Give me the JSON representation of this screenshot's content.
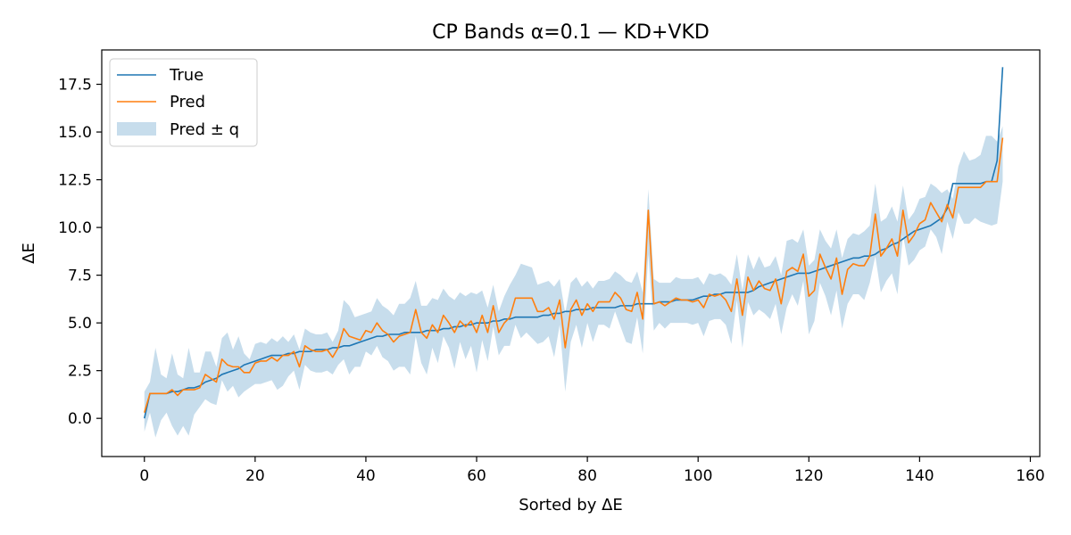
{
  "chart_data": {
    "type": "line",
    "title": "CP Bands α=0.1 — KD+VKD",
    "xlabel": "Sorted by ΔE",
    "ylabel": "ΔE",
    "xlim": [
      -7.7,
      161.7
    ],
    "ylim": [
      -2.0,
      19.3
    ],
    "x_ticks": [
      0,
      20,
      40,
      60,
      80,
      100,
      120,
      140,
      160
    ],
    "y_ticks": [
      0.0,
      2.5,
      5.0,
      7.5,
      10.0,
      12.5,
      15.0,
      17.5
    ],
    "x_tick_labels": [
      "0",
      "20",
      "40",
      "60",
      "80",
      "100",
      "120",
      "140",
      "160"
    ],
    "y_tick_labels": [
      "0.0",
      "2.5",
      "5.0",
      "7.5",
      "10.0",
      "12.5",
      "15.0",
      "17.5"
    ],
    "legend_position": "upper-left",
    "legend": [
      "True",
      "Pred",
      "Pred ± q"
    ],
    "x_start": 0,
    "x_step": 1,
    "series": [
      {
        "name": "True",
        "color": "#1f77b4",
        "values": [
          0.0,
          1.3,
          1.3,
          1.3,
          1.3,
          1.4,
          1.4,
          1.5,
          1.6,
          1.6,
          1.7,
          1.9,
          2.0,
          2.1,
          2.3,
          2.4,
          2.5,
          2.6,
          2.8,
          2.9,
          3.0,
          3.1,
          3.2,
          3.3,
          3.3,
          3.3,
          3.4,
          3.4,
          3.5,
          3.5,
          3.5,
          3.6,
          3.6,
          3.6,
          3.7,
          3.7,
          3.8,
          3.8,
          3.9,
          4.0,
          4.1,
          4.2,
          4.3,
          4.3,
          4.4,
          4.4,
          4.4,
          4.5,
          4.5,
          4.5,
          4.5,
          4.6,
          4.6,
          4.6,
          4.7,
          4.7,
          4.8,
          4.8,
          4.9,
          4.9,
          5.0,
          5.0,
          5.0,
          5.1,
          5.1,
          5.2,
          5.2,
          5.3,
          5.3,
          5.3,
          5.3,
          5.3,
          5.4,
          5.4,
          5.5,
          5.5,
          5.6,
          5.6,
          5.7,
          5.7,
          5.7,
          5.8,
          5.8,
          5.8,
          5.8,
          5.8,
          5.9,
          5.9,
          5.9,
          6.0,
          6.0,
          6.0,
          6.0,
          6.1,
          6.1,
          6.1,
          6.2,
          6.2,
          6.2,
          6.2,
          6.3,
          6.4,
          6.4,
          6.5,
          6.5,
          6.6,
          6.6,
          6.6,
          6.6,
          6.6,
          6.7,
          6.9,
          7.0,
          7.1,
          7.2,
          7.3,
          7.4,
          7.5,
          7.6,
          7.6,
          7.6,
          7.7,
          7.8,
          7.9,
          8.0,
          8.1,
          8.2,
          8.3,
          8.4,
          8.4,
          8.5,
          8.5,
          8.6,
          8.8,
          8.9,
          9.1,
          9.2,
          9.4,
          9.6,
          9.8,
          9.9,
          10.0,
          10.1,
          10.3,
          10.5,
          11.0,
          12.3,
          12.3,
          12.3,
          12.3,
          12.3,
          12.3,
          12.4,
          12.4,
          13.5,
          18.4
        ]
      },
      {
        "name": "Pred",
        "color": "#ff7f0e",
        "values": [
          0.3,
          1.3,
          1.3,
          1.3,
          1.3,
          1.5,
          1.2,
          1.5,
          1.5,
          1.5,
          1.6,
          2.3,
          2.1,
          1.9,
          3.1,
          2.8,
          2.7,
          2.7,
          2.4,
          2.4,
          2.9,
          3.0,
          3.0,
          3.2,
          3.0,
          3.3,
          3.3,
          3.5,
          2.7,
          3.8,
          3.6,
          3.5,
          3.5,
          3.6,
          3.2,
          3.7,
          4.7,
          4.3,
          4.2,
          4.1,
          4.6,
          4.5,
          5.0,
          4.6,
          4.4,
          4.0,
          4.3,
          4.4,
          4.5,
          5.7,
          4.5,
          4.2,
          4.9,
          4.5,
          5.4,
          5.0,
          4.5,
          5.1,
          4.8,
          5.1,
          4.5,
          5.4,
          4.5,
          5.9,
          4.5,
          5.0,
          5.3,
          6.3,
          6.3,
          6.3,
          6.3,
          5.6,
          5.6,
          5.8,
          5.2,
          6.2,
          3.7,
          5.7,
          6.2,
          5.4,
          6.0,
          5.6,
          6.1,
          6.1,
          6.1,
          6.6,
          6.3,
          5.7,
          5.6,
          6.6,
          5.2,
          10.9,
          6.0,
          6.1,
          5.9,
          6.1,
          6.3,
          6.2,
          6.2,
          6.1,
          6.2,
          5.8,
          6.5,
          6.4,
          6.5,
          6.2,
          5.6,
          7.3,
          5.4,
          7.4,
          6.7,
          7.2,
          6.8,
          6.7,
          7.3,
          6.0,
          7.7,
          7.9,
          7.7,
          8.6,
          6.4,
          6.7,
          8.6,
          7.9,
          7.3,
          8.4,
          6.5,
          7.8,
          8.1,
          8.0,
          8.0,
          8.5,
          10.7,
          8.5,
          8.9,
          9.4,
          8.5,
          10.9,
          9.2,
          9.6,
          10.2,
          10.4,
          11.3,
          10.8,
          10.3,
          11.2,
          10.5,
          12.1,
          12.1,
          12.1,
          12.1,
          12.1,
          12.4,
          12.4,
          12.4,
          14.7
        ]
      }
    ],
    "band": {
      "name": "Pred ± q",
      "color": "#1f77b4",
      "opacity": 0.25,
      "lower": [
        -0.7,
        0.3,
        -1.0,
        -0.1,
        0.3,
        -0.4,
        -0.9,
        -0.4,
        -0.9,
        0.2,
        0.6,
        1.0,
        0.8,
        0.7,
        2.0,
        1.4,
        1.7,
        1.1,
        1.4,
        1.6,
        1.8,
        1.8,
        1.9,
        2.0,
        1.5,
        1.7,
        2.2,
        2.5,
        1.5,
        2.8,
        2.5,
        2.4,
        2.4,
        2.5,
        2.3,
        2.8,
        3.1,
        2.3,
        2.7,
        2.7,
        3.5,
        3.3,
        3.8,
        3.2,
        3.0,
        2.5,
        2.7,
        2.7,
        2.3,
        4.3,
        2.9,
        2.3,
        3.7,
        2.9,
        4.3,
        3.7,
        2.6,
        4.0,
        3.1,
        3.8,
        2.4,
        4.1,
        3.0,
        4.8,
        3.3,
        3.8,
        3.8,
        4.9,
        4.2,
        4.5,
        4.2,
        3.9,
        4.0,
        4.3,
        3.2,
        4.9,
        1.4,
        4.0,
        4.9,
        3.7,
        5.0,
        4.0,
        4.9,
        4.9,
        4.7,
        5.6,
        4.8,
        4.0,
        3.9,
        5.3,
        3.4,
        8.6,
        4.6,
        5.0,
        4.7,
        5.0,
        5.0,
        5.0,
        5.0,
        4.9,
        5.0,
        4.3,
        5.1,
        5.2,
        5.2,
        4.9,
        3.9,
        6.2,
        3.7,
        6.1,
        5.4,
        5.7,
        5.5,
        5.2,
        6.0,
        4.4,
        5.8,
        6.5,
        5.9,
        7.2,
        4.4,
        5.1,
        7.1,
        6.4,
        5.4,
        6.7,
        4.7,
        6.0,
        6.5,
        6.5,
        6.2,
        7.1,
        8.5,
        6.6,
        7.2,
        7.6,
        6.5,
        9.6,
        8.0,
        8.3,
        8.8,
        9.0,
        9.9,
        9.5,
        8.6,
        10.3,
        9.4,
        10.8,
        10.2,
        10.2,
        10.5,
        10.3,
        10.2,
        10.1,
        10.2,
        12.4
      ],
      "upper": [
        1.4,
        1.9,
        3.7,
        2.3,
        2.1,
        3.4,
        2.3,
        2.1,
        3.7,
        2.4,
        2.4,
        3.5,
        3.5,
        2.7,
        4.2,
        4.5,
        3.6,
        4.3,
        3.4,
        3.1,
        3.9,
        4.0,
        3.9,
        4.2,
        4.0,
        4.3,
        4.0,
        4.4,
        3.6,
        4.7,
        4.5,
        4.4,
        4.4,
        4.5,
        4.0,
        4.6,
        6.2,
        5.9,
        5.3,
        5.4,
        5.5,
        5.6,
        6.3,
        5.9,
        5.7,
        5.4,
        6.0,
        6.0,
        6.3,
        7.2,
        5.9,
        5.9,
        6.3,
        6.2,
        6.8,
        6.4,
        6.2,
        6.6,
        6.4,
        6.6,
        6.5,
        6.7,
        5.8,
        7.0,
        5.6,
        6.4,
        7.0,
        7.5,
        8.1,
        8.0,
        7.9,
        7.0,
        7.1,
        7.2,
        6.9,
        7.3,
        5.5,
        7.1,
        7.4,
        6.9,
        7.2,
        6.8,
        7.2,
        7.2,
        7.3,
        7.7,
        7.5,
        7.2,
        7.1,
        7.7,
        6.6,
        12.0,
        7.3,
        7.1,
        7.1,
        7.1,
        7.4,
        7.3,
        7.3,
        7.3,
        7.4,
        7.0,
        7.6,
        7.5,
        7.6,
        7.4,
        7.0,
        8.6,
        6.7,
        8.6,
        7.8,
        8.5,
        7.9,
        8.0,
        8.5,
        7.5,
        9.3,
        9.4,
        9.2,
        9.9,
        8.0,
        8.3,
        9.9,
        9.3,
        8.9,
        9.9,
        8.4,
        9.4,
        9.7,
        9.6,
        9.8,
        10.1,
        12.3,
        10.3,
        10.5,
        11.1,
        10.3,
        12.2,
        10.4,
        10.8,
        11.5,
        11.6,
        12.3,
        12.1,
        11.8,
        12.0,
        11.5,
        13.2,
        14.0,
        13.5,
        13.6,
        13.8,
        14.8,
        14.8,
        14.5,
        15.3
      ]
    }
  }
}
